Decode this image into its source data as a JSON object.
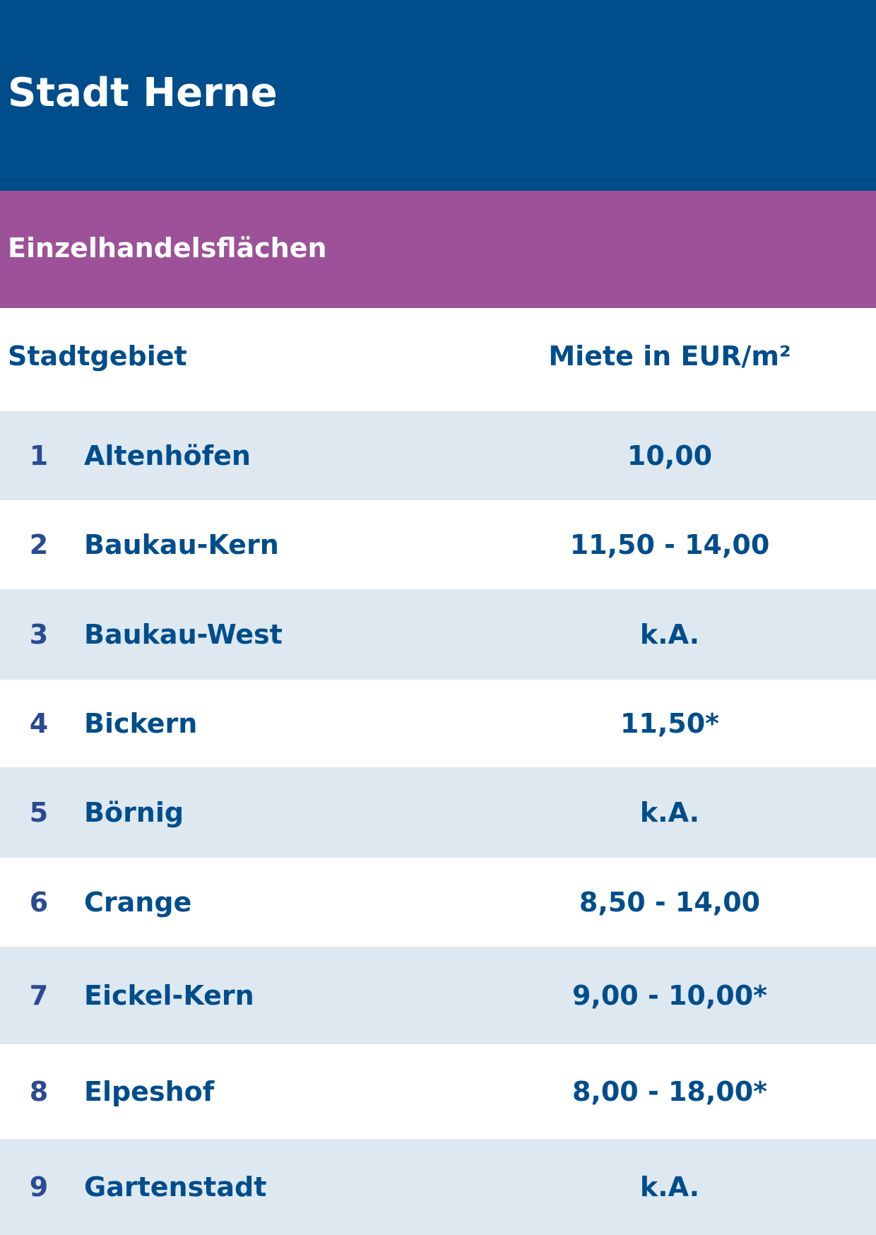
{
  "title": "Stadt Herne",
  "section": "Einzelhandelsflächen",
  "columns": {
    "district": "Stadtgebiet",
    "rent": "Miete in EUR/m²"
  },
  "colors": {
    "title_band": "#004d8c",
    "section_band": "#9c5199",
    "row_shade": "#dde8f1",
    "text": "#004d8c"
  },
  "rows": [
    {
      "num": "1",
      "name": "Altenhöfen",
      "rent": "10,00"
    },
    {
      "num": "2",
      "name": "Baukau-Kern",
      "rent": "11,50 - 14,00"
    },
    {
      "num": "3",
      "name": "Baukau-West",
      "rent": "k.A."
    },
    {
      "num": "4",
      "name": "Bickern",
      "rent": "11,50*"
    },
    {
      "num": "5",
      "name": "Börnig",
      "rent": "k.A."
    },
    {
      "num": "6",
      "name": "Crange",
      "rent": "8,50 - 14,00"
    },
    {
      "num": "7",
      "name": "Eickel-Kern",
      "rent": "9,00 - 10,00*"
    },
    {
      "num": "8",
      "name": "Elpeshof",
      "rent": "8,00 - 18,00*"
    },
    {
      "num": "9",
      "name": "Gartenstadt",
      "rent": "k.A."
    }
  ]
}
